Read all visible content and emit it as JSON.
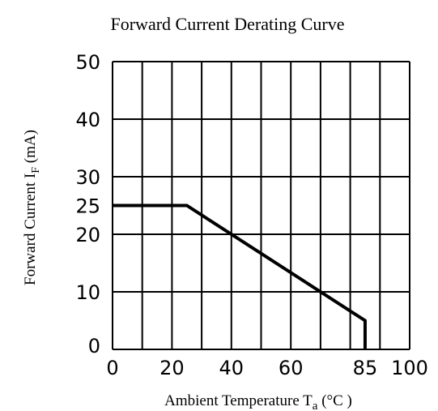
{
  "chart_data": {
    "type": "line",
    "title": "Forward Current Derating Curve",
    "xlabel": {
      "prefix": "Ambient Temperature T",
      "subscript": "a",
      "suffix": " (°C )"
    },
    "ylabel": {
      "prefix": "Forward Current    I",
      "subscript": "F",
      "suffix": " (mA)"
    },
    "xlim": [
      0,
      100
    ],
    "ylim": [
      0,
      50
    ],
    "x_ticks": [
      0,
      20,
      40,
      60,
      85,
      100
    ],
    "y_ticks": [
      0,
      10,
      20,
      25,
      30,
      40,
      50
    ],
    "grid_x": [
      0,
      10,
      20,
      30,
      40,
      50,
      60,
      70,
      80,
      90,
      100
    ],
    "grid_y": [
      0,
      10,
      20,
      30,
      40,
      50
    ],
    "grid": true,
    "series": [
      {
        "x": [
          0,
          25,
          85,
          85
        ],
        "y": [
          25,
          25,
          5,
          0
        ]
      }
    ]
  }
}
